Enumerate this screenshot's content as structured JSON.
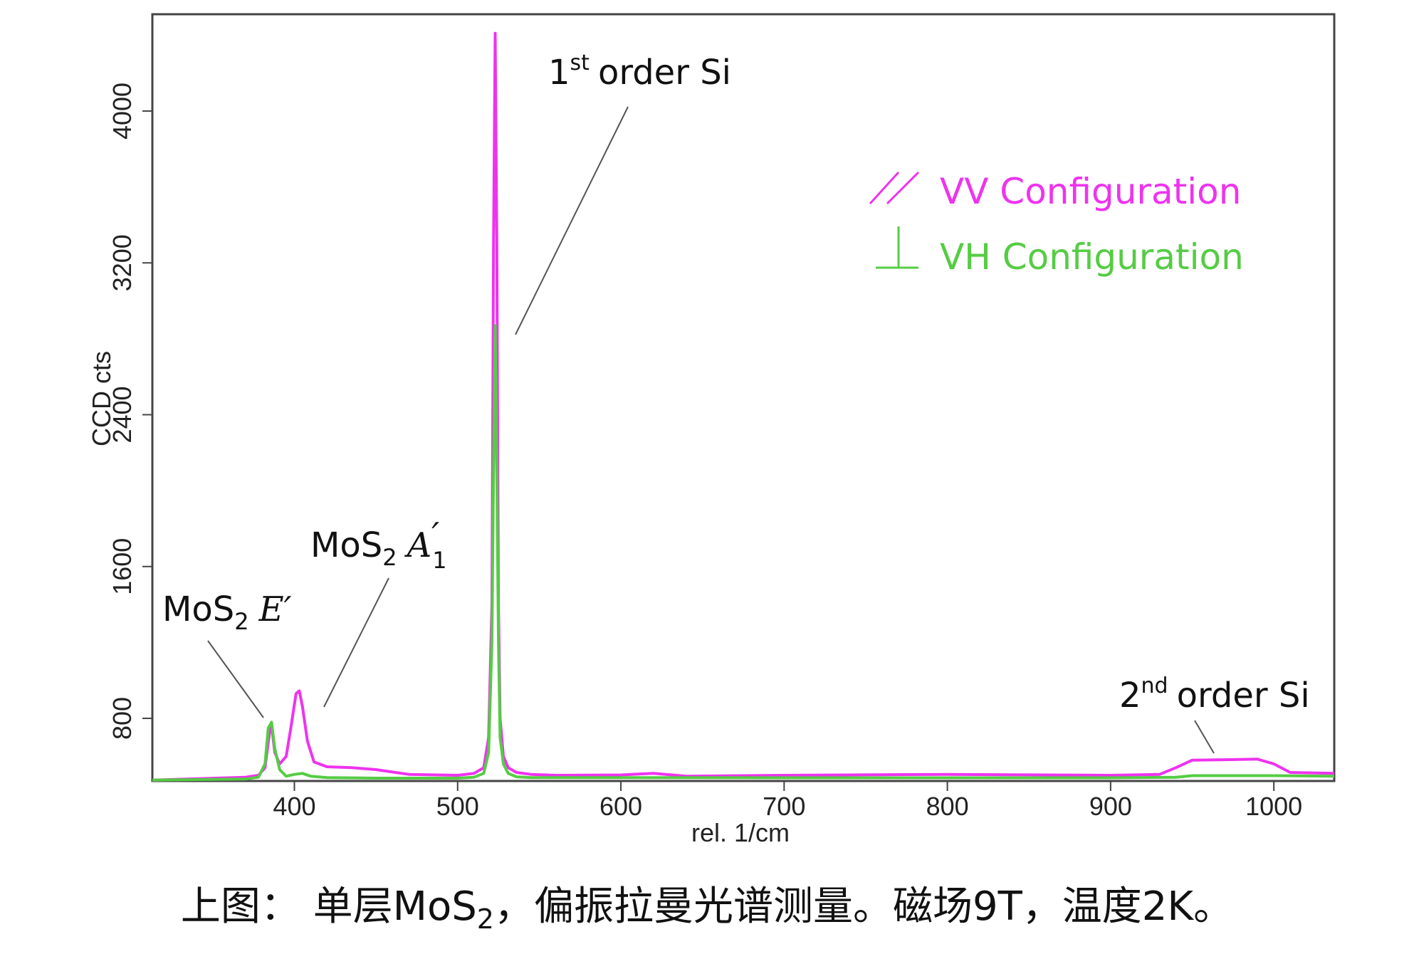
{
  "chart_data": {
    "type": "line",
    "title": "",
    "xlabel": "rel. 1/cm",
    "ylabel": "CCD cts",
    "xlim": [
      313,
      1037
    ],
    "ylim": [
      470,
      4510
    ],
    "xticks": [
      400,
      500,
      600,
      700,
      800,
      900,
      1000
    ],
    "yticks": [
      800,
      1600,
      2400,
      3200,
      4000
    ],
    "grid": false,
    "legend_position": "top-right",
    "series": [
      {
        "name": "VV Configuration",
        "color": "#ee33ee",
        "x": [
          313,
          370,
          378,
          382,
          385,
          386,
          388,
          391,
          395,
          398,
          401,
          403,
          405,
          408,
          412,
          420,
          435,
          450,
          470,
          500,
          510,
          516,
          519,
          521,
          522,
          523,
          524,
          525,
          526,
          528,
          531,
          536,
          545,
          560,
          600,
          620,
          640,
          700,
          800,
          900,
          930,
          940,
          950,
          970,
          990,
          1000,
          1010,
          1037
        ],
        "y": [
          475,
          490,
          500,
          540,
          740,
          760,
          620,
          560,
          600,
          760,
          930,
          945,
          860,
          680,
          570,
          545,
          540,
          530,
          505,
          500,
          510,
          540,
          700,
          1400,
          3300,
          4410,
          3300,
          1400,
          800,
          600,
          540,
          515,
          505,
          500,
          502,
          510,
          495,
          500,
          505,
          500,
          505,
          540,
          580,
          582,
          585,
          560,
          515,
          510
        ]
      },
      {
        "name": "VH Configuration",
        "color": "#55cc44",
        "x": [
          313,
          370,
          378,
          382,
          384,
          386,
          388,
          391,
          395,
          400,
          405,
          410,
          420,
          450,
          500,
          510,
          516,
          519,
          521,
          522,
          523,
          524,
          525,
          526,
          528,
          531,
          536,
          545,
          600,
          700,
          800,
          900,
          940,
          950,
          1000,
          1037
        ],
        "y": [
          475,
          480,
          490,
          560,
          750,
          780,
          640,
          530,
          495,
          505,
          510,
          495,
          488,
          485,
          485,
          490,
          510,
          620,
          1200,
          2100,
          2870,
          2100,
          1200,
          700,
          560,
          510,
          492,
          488,
          488,
          487,
          487,
          487,
          490,
          498,
          498,
          495
        ]
      }
    ],
    "annotations": [
      {
        "label": "MoS",
        "sub": "2",
        "symbol": "E′"
      },
      {
        "label": "MoS",
        "sub": "2",
        "symbol": "A",
        "symbol_prime": "′",
        "symbol_sub": "1"
      },
      {
        "prefix": "1",
        "sup": "st",
        "label": "order Si"
      },
      {
        "prefix": "2",
        "sup": "nd",
        "label": "order Si"
      }
    ]
  },
  "caption": {
    "prefix": "上图：  单层MoS",
    "sub": "2",
    "suffix": "，偏振拉曼光谱测量。磁场9T，温度2K。"
  }
}
